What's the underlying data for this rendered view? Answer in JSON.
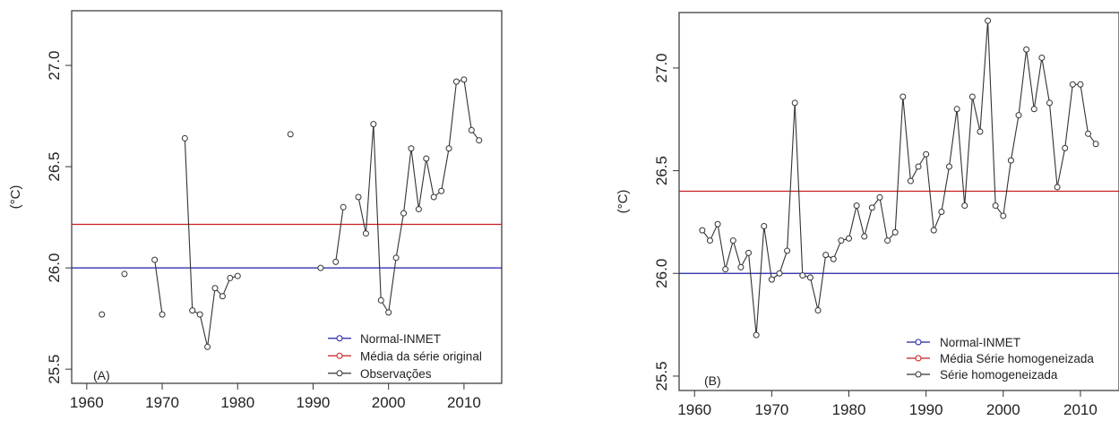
{
  "chart_data": [
    {
      "type": "line",
      "panel_label": "(A)",
      "ylabel": "(°C)",
      "xlabel": "",
      "xlim": [
        1958,
        2015
      ],
      "ylim": [
        25.43,
        27.27
      ],
      "x_ticks": [
        "1960",
        "1970",
        "1980",
        "1990",
        "2000",
        "2010"
      ],
      "y_ticks": [
        "25.5",
        "26.0",
        "26.5",
        "27.0"
      ],
      "hlines": [
        {
          "name": "Normal-INMET",
          "y": 26.0,
          "color": "#1f1fa8"
        },
        {
          "name": "Média da série original",
          "y": 26.215,
          "color": "#c81e1e"
        }
      ],
      "series": [
        {
          "name": "Observações",
          "color": "#333333",
          "points": [
            {
              "x": 1962,
              "y": 25.77
            },
            {
              "x": 1965,
              "y": 25.97
            },
            {
              "x": 1969,
              "y": 26.04
            },
            {
              "x": 1970,
              "y": 25.77
            },
            {
              "x": 1973,
              "y": 26.64
            },
            {
              "x": 1974,
              "y": 25.79
            },
            {
              "x": 1975,
              "y": 25.77
            },
            {
              "x": 1976,
              "y": 25.61
            },
            {
              "x": 1977,
              "y": 25.9
            },
            {
              "x": 1978,
              "y": 25.86
            },
            {
              "x": 1979,
              "y": 25.95
            },
            {
              "x": 1980,
              "y": 25.96
            },
            {
              "x": 1987,
              "y": 26.66
            },
            {
              "x": 1991,
              "y": 26.0
            },
            {
              "x": 1993,
              "y": 26.03
            },
            {
              "x": 1994,
              "y": 26.3
            },
            {
              "x": 1996,
              "y": 26.35
            },
            {
              "x": 1997,
              "y": 26.17
            },
            {
              "x": 1998,
              "y": 26.71
            },
            {
              "x": 1999,
              "y": 25.84
            },
            {
              "x": 2000,
              "y": 25.78
            },
            {
              "x": 2001,
              "y": 26.05
            },
            {
              "x": 2002,
              "y": 26.27
            },
            {
              "x": 2003,
              "y": 26.59
            },
            {
              "x": 2004,
              "y": 26.29
            },
            {
              "x": 2005,
              "y": 26.54
            },
            {
              "x": 2006,
              "y": 26.35
            },
            {
              "x": 2007,
              "y": 26.38
            },
            {
              "x": 2008,
              "y": 26.59
            },
            {
              "x": 2009,
              "y": 26.92
            },
            {
              "x": 2010,
              "y": 26.93
            },
            {
              "x": 2011,
              "y": 26.68
            },
            {
              "x": 2012,
              "y": 26.63
            }
          ]
        }
      ],
      "legend_position": "bottom-right"
    },
    {
      "type": "line",
      "panel_label": "(B)",
      "ylabel": "(°C)",
      "xlabel": "",
      "xlim": [
        1958,
        2015
      ],
      "ylim": [
        25.43,
        27.27
      ],
      "x_ticks": [
        "1960",
        "1970",
        "1980",
        "1990",
        "2000",
        "2010"
      ],
      "y_ticks": [
        "25.5",
        "26.0",
        "26.5",
        "27.0"
      ],
      "hlines": [
        {
          "name": "Normal-INMET",
          "y": 26.0,
          "color": "#1f1fa8"
        },
        {
          "name": "Média Série homogeneizada",
          "y": 26.4,
          "color": "#c81e1e"
        }
      ],
      "series": [
        {
          "name": "Série homogeneizada",
          "color": "#333333",
          "points": [
            {
              "x": 1961,
              "y": 26.21
            },
            {
              "x": 1962,
              "y": 26.16
            },
            {
              "x": 1963,
              "y": 26.24
            },
            {
              "x": 1964,
              "y": 26.02
            },
            {
              "x": 1965,
              "y": 26.16
            },
            {
              "x": 1966,
              "y": 26.03
            },
            {
              "x": 1967,
              "y": 26.1
            },
            {
              "x": 1968,
              "y": 25.7
            },
            {
              "x": 1969,
              "y": 26.23
            },
            {
              "x": 1970,
              "y": 25.97
            },
            {
              "x": 1971,
              "y": 26.0
            },
            {
              "x": 1972,
              "y": 26.11
            },
            {
              "x": 1973,
              "y": 26.83
            },
            {
              "x": 1974,
              "y": 25.99
            },
            {
              "x": 1975,
              "y": 25.98
            },
            {
              "x": 1976,
              "y": 25.82
            },
            {
              "x": 1977,
              "y": 26.09
            },
            {
              "x": 1978,
              "y": 26.07
            },
            {
              "x": 1979,
              "y": 26.16
            },
            {
              "x": 1980,
              "y": 26.17
            },
            {
              "x": 1981,
              "y": 26.33
            },
            {
              "x": 1982,
              "y": 26.18
            },
            {
              "x": 1983,
              "y": 26.32
            },
            {
              "x": 1984,
              "y": 26.37
            },
            {
              "x": 1985,
              "y": 26.16
            },
            {
              "x": 1986,
              "y": 26.2
            },
            {
              "x": 1987,
              "y": 26.86
            },
            {
              "x": 1988,
              "y": 26.45
            },
            {
              "x": 1989,
              "y": 26.52
            },
            {
              "x": 1990,
              "y": 26.58
            },
            {
              "x": 1991,
              "y": 26.21
            },
            {
              "x": 1992,
              "y": 26.3
            },
            {
              "x": 1993,
              "y": 26.52
            },
            {
              "x": 1994,
              "y": 26.8
            },
            {
              "x": 1995,
              "y": 26.33
            },
            {
              "x": 1996,
              "y": 26.86
            },
            {
              "x": 1997,
              "y": 26.69
            },
            {
              "x": 1998,
              "y": 27.23
            },
            {
              "x": 1999,
              "y": 26.33
            },
            {
              "x": 2000,
              "y": 26.28
            },
            {
              "x": 2001,
              "y": 26.55
            },
            {
              "x": 2002,
              "y": 26.77
            },
            {
              "x": 2003,
              "y": 27.09
            },
            {
              "x": 2004,
              "y": 26.8
            },
            {
              "x": 2005,
              "y": 27.05
            },
            {
              "x": 2006,
              "y": 26.83
            },
            {
              "x": 2007,
              "y": 26.42
            },
            {
              "x": 2008,
              "y": 26.61
            },
            {
              "x": 2009,
              "y": 26.92
            },
            {
              "x": 2010,
              "y": 26.92
            },
            {
              "x": 2011,
              "y": 26.68
            },
            {
              "x": 2012,
              "y": 26.63
            }
          ]
        }
      ],
      "legend_position": "bottom-right"
    }
  ]
}
